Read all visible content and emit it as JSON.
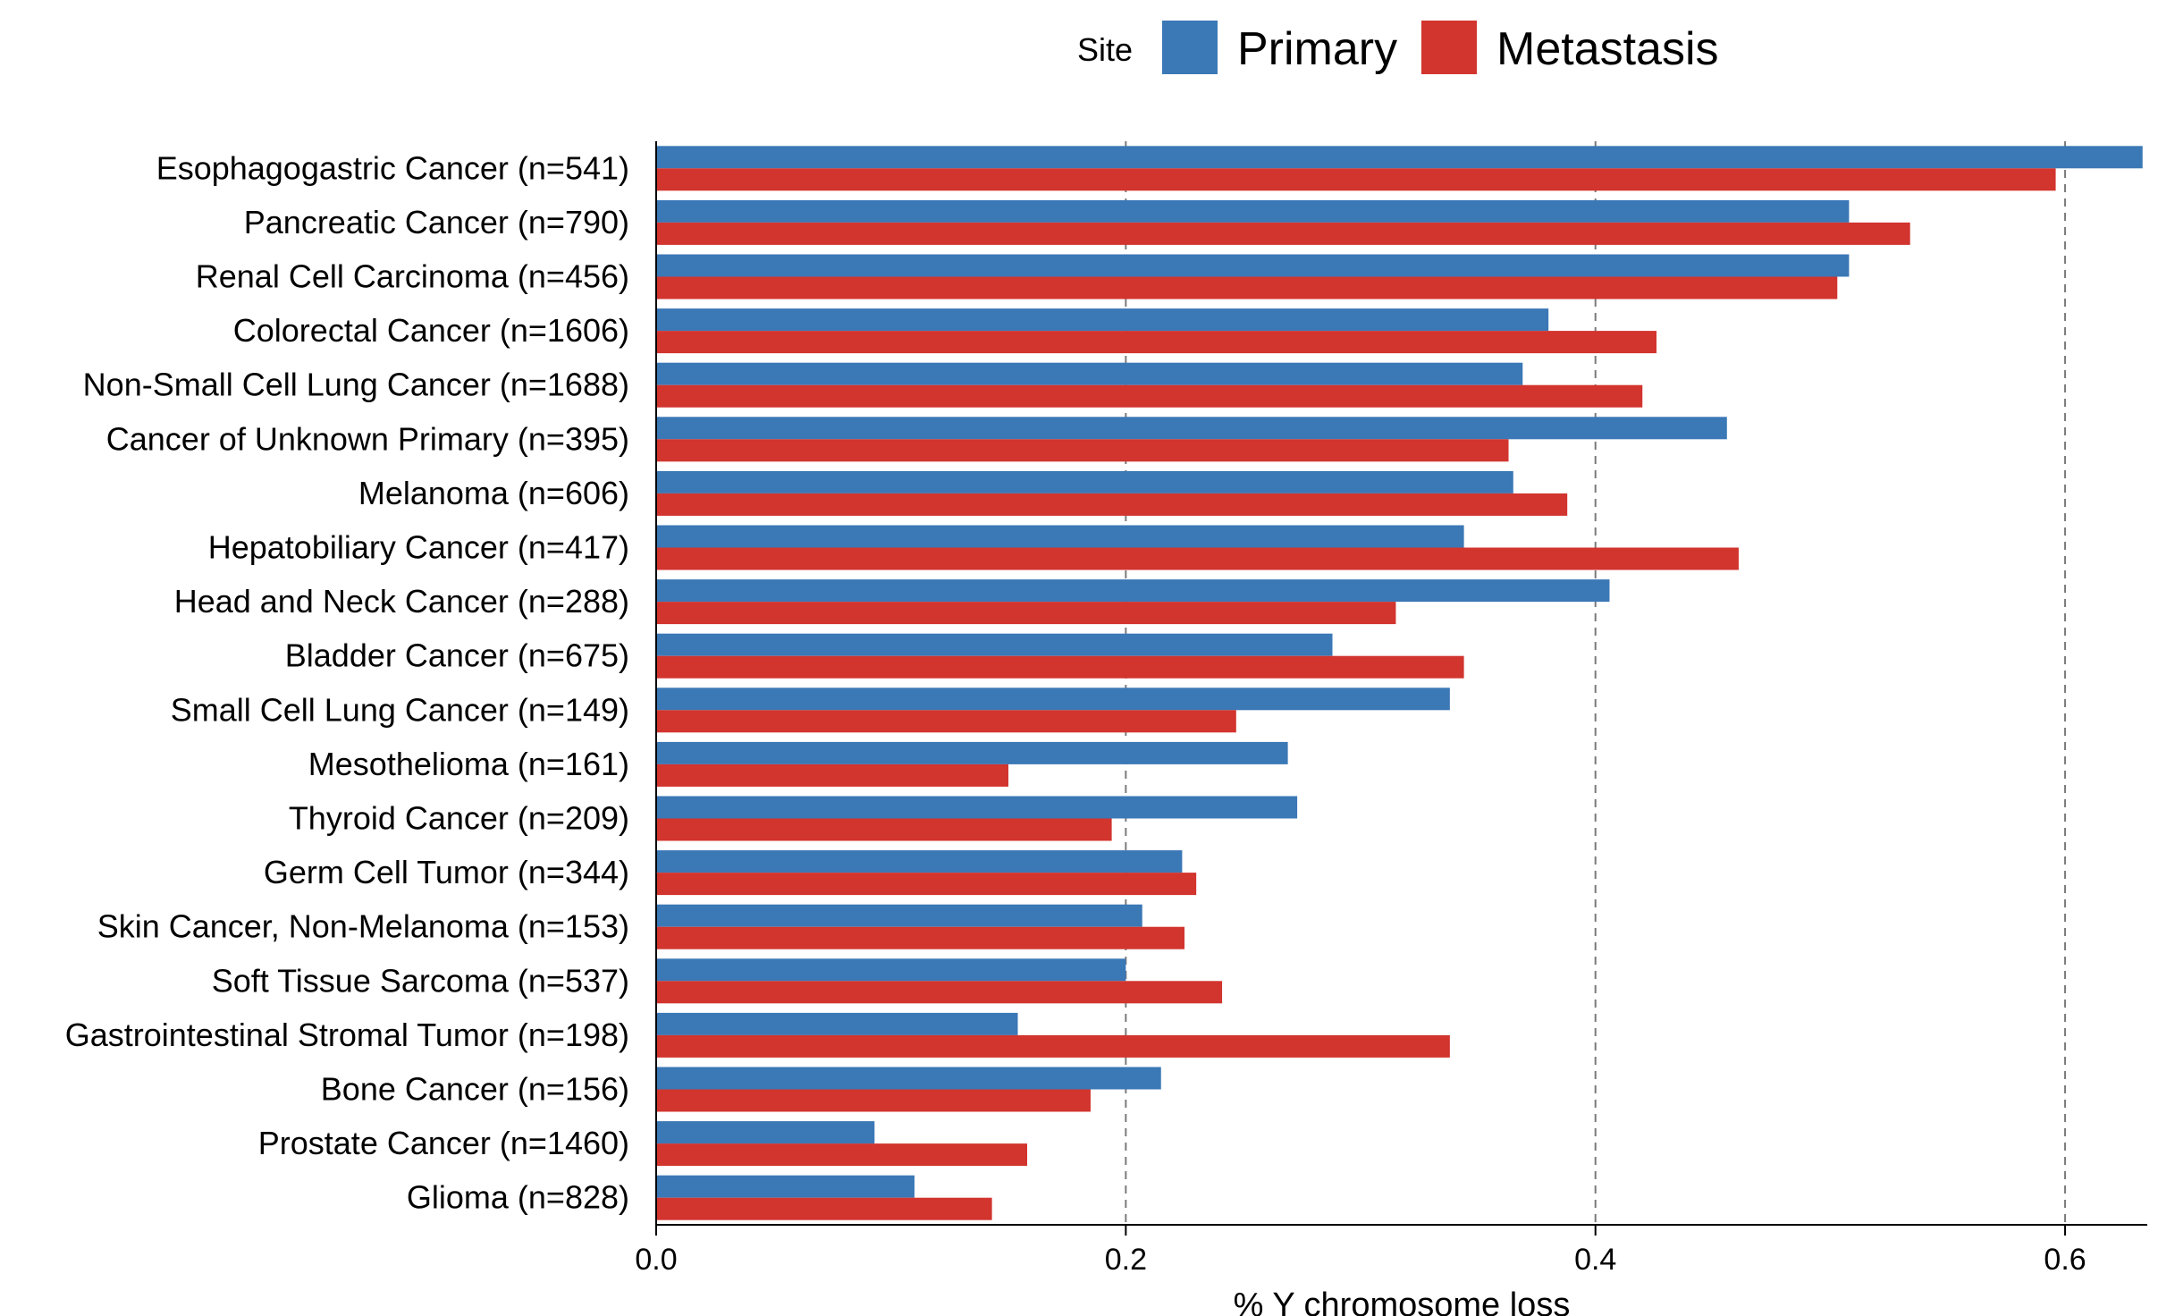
{
  "chart_data": {
    "type": "bar",
    "orientation": "horizontal",
    "xlabel": "% Y chromosome loss",
    "xlim": [
      0,
      0.635
    ],
    "xticks": [
      "0.0",
      "0.2",
      "0.4",
      "0.6"
    ],
    "grid": "vertical dashed lines at 0.2, 0.4, 0.6",
    "legend": {
      "title": "Site",
      "placement": "top",
      "entries": [
        "Primary",
        "Metastasis"
      ]
    },
    "colors": {
      "Primary": "#3B78B6",
      "Metastasis": "#D2342E"
    },
    "categories": [
      "Esophagogastric Cancer (n=541)",
      "Pancreatic Cancer (n=790)",
      "Renal Cell Carcinoma (n=456)",
      "Colorectal Cancer (n=1606)",
      "Non-Small Cell Lung Cancer (n=1688)",
      "Cancer of Unknown Primary (n=395)",
      "Melanoma (n=606)",
      "Hepatobiliary Cancer (n=417)",
      "Head and Neck Cancer (n=288)",
      "Bladder Cancer (n=675)",
      "Small Cell Lung Cancer (n=149)",
      "Mesothelioma (n=161)",
      "Thyroid Cancer (n=209)",
      "Germ Cell Tumor (n=344)",
      "Skin Cancer, Non-Melanoma (n=153)",
      "Soft Tissue Sarcoma (n=537)",
      "Gastrointestinal Stromal Tumor (n=198)",
      "Bone Cancer (n=156)",
      "Prostate Cancer (n=1460)",
      "Glioma (n=828)"
    ],
    "series": [
      {
        "name": "Primary",
        "values": [
          0.633,
          0.508,
          0.508,
          0.38,
          0.369,
          0.456,
          0.365,
          0.344,
          0.406,
          0.288,
          0.338,
          0.269,
          0.273,
          0.224,
          0.207,
          0.2,
          0.154,
          0.215,
          0.093,
          0.11
        ]
      },
      {
        "name": "Metastasis",
        "values": [
          0.596,
          0.534,
          0.503,
          0.426,
          0.42,
          0.363,
          0.388,
          0.461,
          0.315,
          0.344,
          0.247,
          0.15,
          0.194,
          0.23,
          0.225,
          0.241,
          0.338,
          0.185,
          0.158,
          0.143
        ]
      }
    ]
  }
}
